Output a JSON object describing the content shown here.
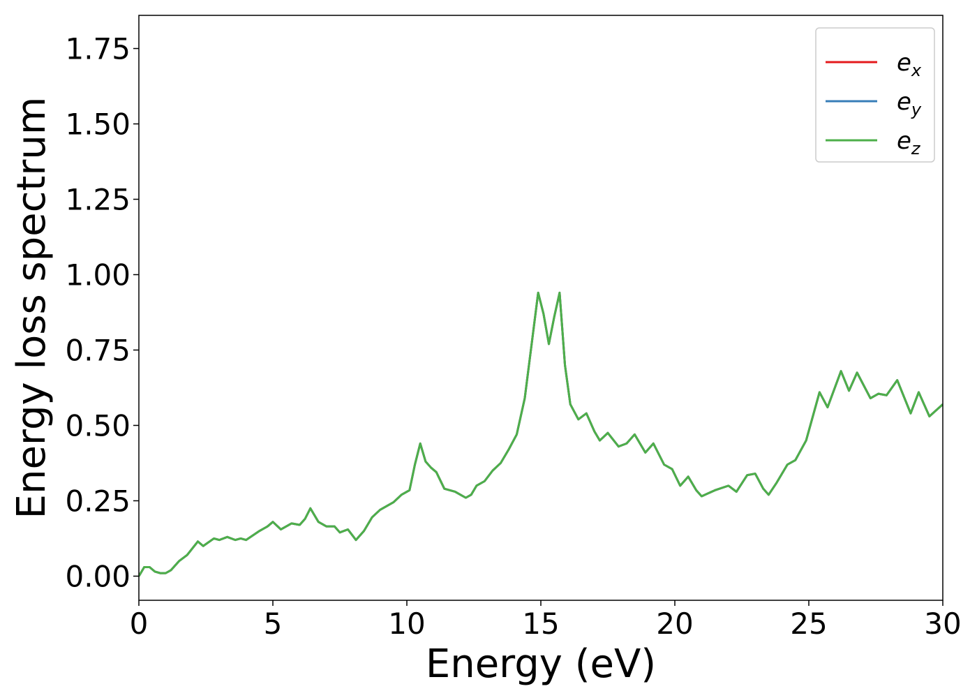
{
  "chart_data": {
    "type": "line",
    "xlabel": "Energy (eV)",
    "ylabel": "Energy loss spectrum",
    "x": [
      0,
      0.2,
      0.4,
      0.6,
      0.8,
      1.0,
      1.2,
      1.5,
      1.8,
      2.2,
      2.4,
      2.8,
      3.0,
      3.3,
      3.6,
      3.8,
      4.0,
      4.5,
      4.8,
      5.0,
      5.3,
      5.7,
      6.0,
      6.2,
      6.4,
      6.7,
      7.0,
      7.3,
      7.5,
      7.8,
      8.1,
      8.4,
      8.7,
      9.0,
      9.5,
      9.8,
      10.1,
      10.3,
      10.5,
      10.7,
      10.9,
      11.1,
      11.4,
      11.8,
      12.0,
      12.2,
      12.4,
      12.6,
      12.9,
      13.2,
      13.5,
      13.8,
      14.1,
      14.4,
      14.7,
      14.9,
      15.1,
      15.3,
      15.5,
      15.7,
      15.9,
      16.1,
      16.4,
      16.7,
      17.0,
      17.2,
      17.5,
      17.9,
      18.2,
      18.5,
      18.9,
      19.2,
      19.6,
      19.9,
      20.2,
      20.5,
      20.8,
      21.0,
      21.5,
      22.0,
      22.3,
      22.7,
      23.0,
      23.3,
      23.5,
      23.8,
      24.2,
      24.5,
      24.9,
      25.4,
      25.7,
      26.2,
      26.5,
      26.8,
      27.3,
      27.6,
      27.9,
      28.3,
      28.8,
      29.1,
      29.5,
      30.0
    ],
    "series": [
      {
        "name": "e_x",
        "color": "#e41a1c",
        "values": [
          0.0,
          0.03,
          0.03,
          0.015,
          0.01,
          0.01,
          0.02,
          0.05,
          0.07,
          0.115,
          0.1,
          0.125,
          0.12,
          0.13,
          0.12,
          0.125,
          0.12,
          0.15,
          0.165,
          0.18,
          0.155,
          0.175,
          0.17,
          0.19,
          0.225,
          0.18,
          0.165,
          0.165,
          0.145,
          0.155,
          0.12,
          0.15,
          0.195,
          0.22,
          0.245,
          0.27,
          0.285,
          0.37,
          0.44,
          0.38,
          0.36,
          0.345,
          0.29,
          0.28,
          0.27,
          0.26,
          0.27,
          0.3,
          0.315,
          0.35,
          0.375,
          0.42,
          0.47,
          0.59,
          0.8,
          0.94,
          0.87,
          0.77,
          0.86,
          0.94,
          0.7,
          0.57,
          0.52,
          0.54,
          0.48,
          0.45,
          0.475,
          0.43,
          0.44,
          0.47,
          0.41,
          0.44,
          0.37,
          0.355,
          0.3,
          0.33,
          0.285,
          0.265,
          0.285,
          0.3,
          0.28,
          0.335,
          0.34,
          0.29,
          0.27,
          0.31,
          0.37,
          0.385,
          0.45,
          0.61,
          0.56,
          0.68,
          0.615,
          0.675,
          0.59,
          0.605,
          0.6,
          0.65,
          0.54,
          0.61,
          0.53,
          0.57
        ]
      },
      {
        "name": "e_y",
        "color": "#377eb8",
        "values": [
          0.0,
          0.03,
          0.03,
          0.015,
          0.01,
          0.01,
          0.02,
          0.05,
          0.07,
          0.115,
          0.1,
          0.125,
          0.12,
          0.13,
          0.12,
          0.125,
          0.12,
          0.15,
          0.165,
          0.18,
          0.155,
          0.175,
          0.17,
          0.19,
          0.225,
          0.18,
          0.165,
          0.165,
          0.145,
          0.155,
          0.12,
          0.15,
          0.195,
          0.22,
          0.245,
          0.27,
          0.285,
          0.37,
          0.44,
          0.38,
          0.36,
          0.345,
          0.29,
          0.28,
          0.27,
          0.26,
          0.27,
          0.3,
          0.315,
          0.35,
          0.375,
          0.42,
          0.47,
          0.59,
          0.8,
          0.94,
          0.87,
          0.77,
          0.86,
          0.94,
          0.7,
          0.57,
          0.52,
          0.54,
          0.48,
          0.45,
          0.475,
          0.43,
          0.44,
          0.47,
          0.41,
          0.44,
          0.37,
          0.355,
          0.3,
          0.33,
          0.285,
          0.265,
          0.285,
          0.3,
          0.28,
          0.335,
          0.34,
          0.29,
          0.27,
          0.31,
          0.37,
          0.385,
          0.45,
          0.61,
          0.56,
          0.68,
          0.615,
          0.675,
          0.59,
          0.605,
          0.6,
          0.65,
          0.54,
          0.61,
          0.53,
          0.57
        ]
      },
      {
        "name": "e_z",
        "color": "#4daf4a",
        "values": [
          0.0,
          0.03,
          0.03,
          0.015,
          0.01,
          0.01,
          0.02,
          0.05,
          0.07,
          0.115,
          0.1,
          0.125,
          0.12,
          0.13,
          0.12,
          0.125,
          0.12,
          0.15,
          0.165,
          0.18,
          0.155,
          0.175,
          0.17,
          0.19,
          0.225,
          0.18,
          0.165,
          0.165,
          0.145,
          0.155,
          0.12,
          0.15,
          0.195,
          0.22,
          0.245,
          0.27,
          0.285,
          0.37,
          0.44,
          0.38,
          0.36,
          0.345,
          0.29,
          0.28,
          0.27,
          0.26,
          0.27,
          0.3,
          0.315,
          0.35,
          0.375,
          0.42,
          0.47,
          0.59,
          0.8,
          0.94,
          0.87,
          0.77,
          0.86,
          0.94,
          0.7,
          0.57,
          0.52,
          0.54,
          0.48,
          0.45,
          0.475,
          0.43,
          0.44,
          0.47,
          0.41,
          0.44,
          0.37,
          0.355,
          0.3,
          0.33,
          0.285,
          0.265,
          0.285,
          0.3,
          0.28,
          0.335,
          0.34,
          0.29,
          0.27,
          0.31,
          0.37,
          0.385,
          0.45,
          0.61,
          0.56,
          0.68,
          0.615,
          0.675,
          0.59,
          0.605,
          0.6,
          0.65,
          0.54,
          0.61,
          0.53,
          0.57
        ]
      }
    ],
    "xlim": [
      0,
      30
    ],
    "xticks": [
      0,
      5,
      10,
      15,
      20,
      25,
      30
    ],
    "ylim": [
      -0.08,
      1.86
    ],
    "yticks": [
      {
        "value": 0,
        "label": "0.00"
      },
      {
        "value": 0.25,
        "label": "0.25"
      },
      {
        "value": 0.5,
        "label": "0.50"
      },
      {
        "value": 0.75,
        "label": "0.75"
      },
      {
        "value": 1.0,
        "label": "1.00"
      },
      {
        "value": 1.25,
        "label": "1.25"
      },
      {
        "value": 1.5,
        "label": "1.50"
      },
      {
        "value": 1.75,
        "label": "1.75"
      }
    ],
    "legend": "upper right",
    "grid": false
  }
}
